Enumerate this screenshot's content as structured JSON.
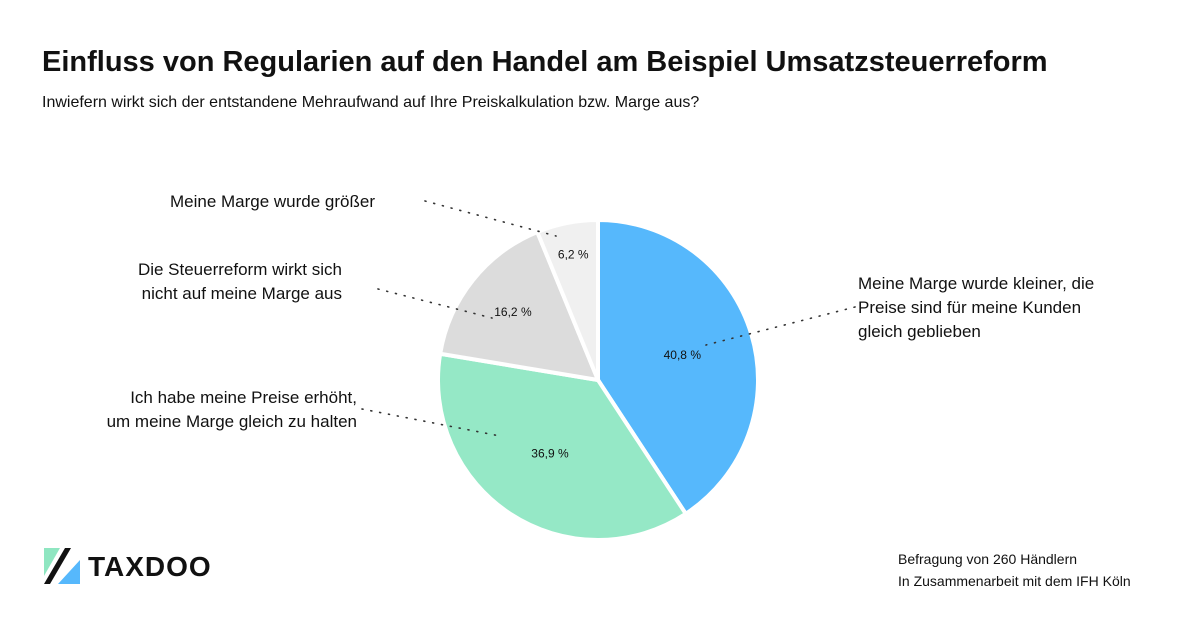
{
  "title": "Einfluss von Regularien auf den Handel am Beispiel Umsatzsteuerreform",
  "subtitle": "Inwiefern wirkt sich der entstandene Mehraufwand auf Ihre Preiskalkulation bzw. Marge aus?",
  "chart_data": {
    "type": "pie",
    "slices": [
      {
        "label_lines": [
          "Meine Marge wurde kleiner, die",
          "Preise sind für meine Kunden",
          "gleich geblieben"
        ],
        "value": 40.8,
        "value_label": "40,8 %",
        "color": "#56b8fc"
      },
      {
        "label_lines": [
          "Ich habe meine Preise erhöht,",
          "um meine Marge gleich zu halten"
        ],
        "value": 36.9,
        "value_label": "36,9 %",
        "color": "#95e8c6"
      },
      {
        "label_lines": [
          "Die Steuerreform wirkt sich",
          "nicht auf meine Marge aus"
        ],
        "value": 16.2,
        "value_label": "16,2 %",
        "color": "#dcdcdc"
      },
      {
        "label_lines": [
          "Meine Marge wurde größer"
        ],
        "value": 6.2,
        "value_label": "6,2 %",
        "color": "#f0f0f0"
      }
    ]
  },
  "footer": {
    "brand": "TAXDOO",
    "source_lines": [
      "Befragung von 260 Händlern",
      "In Zusammenarbeit mit dem IFH Köln"
    ]
  },
  "colors": {
    "brand_green": "#8fe6c1",
    "brand_blue": "#56b8fc",
    "dot_line": "#333333"
  }
}
